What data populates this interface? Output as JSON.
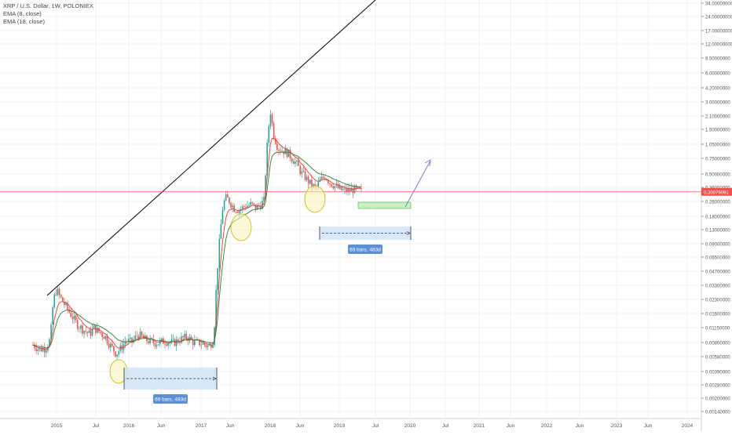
{
  "legend": {
    "symbol_line": "XRP / U.S. Dollar, 1W, POLONIEX",
    "indicator_1": "EMA (8, close)",
    "indicator_2": "EMA (18, close)"
  },
  "colors": {
    "up": "#26a69a",
    "down": "#ef5350",
    "ema8": "#e53935",
    "ema18": "#2e7d32",
    "price_line": "#ef5350",
    "trend_line": "#000000",
    "range_fill": "#cfe2f7",
    "range_label_bg": "#5b8fd6",
    "highlight_fill": "#f7f3b5",
    "highlight_stroke": "#c9b300",
    "target_box_fill": "#c8f0c0",
    "target_box_stroke": "#4caf50",
    "arrow": "#7b7fd8"
  },
  "chart_data": {
    "type": "candlestick",
    "scale": "log",
    "x_ticks": [
      "2015",
      "Jul",
      "2016",
      "Jun",
      "2017",
      "Jun",
      "2018",
      "Jun",
      "2019",
      "Jul",
      "2020",
      "Jul",
      "2021",
      "Jun",
      "2022",
      "Jun",
      "2023",
      "Jun",
      "2024"
    ],
    "y_ticks": [
      "34.00000000",
      "24.00000000",
      "17.00000000",
      "12.00000000",
      "8.50000000",
      "6.00000000",
      "4.20000000",
      "3.00000000",
      "2.10000000",
      "1.50000000",
      "1.05000000",
      "0.75000000",
      "0.50000000",
      "0.36000000",
      "0.26000000",
      "0.18000000",
      "0.13000000",
      "0.09000000",
      "0.06500000",
      "0.04700000",
      "0.03300000",
      "0.02300000",
      "0.01600000",
      "0.01150000",
      "0.00800000",
      "0.00580000",
      "0.00390000",
      "0.00280000",
      "0.00200000",
      "0.00140000"
    ],
    "current_price": "0.30079091",
    "series": [
      {
        "name": "EMA (8, close)"
      },
      {
        "name": "EMA (18, close)"
      }
    ],
    "annotations": {
      "range_1_label": "69 bars, 483d",
      "range_2_label": "69 bars, 483d"
    }
  }
}
